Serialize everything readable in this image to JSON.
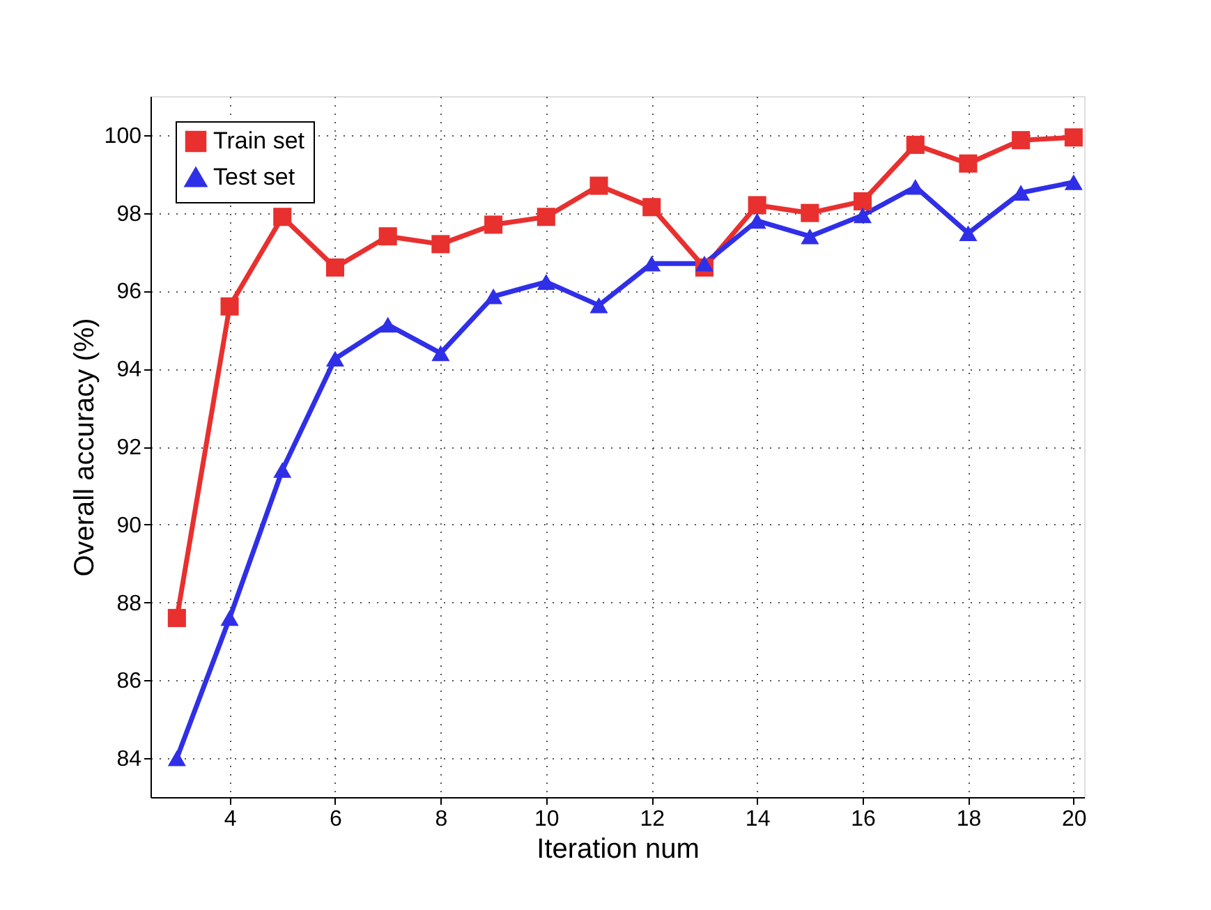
{
  "chart_data": {
    "type": "line",
    "xlabel": "Iteration num",
    "ylabel": "Overall accuracy (%)",
    "x": [
      3,
      4,
      5,
      6,
      7,
      8,
      9,
      10,
      11,
      12,
      13,
      14,
      15,
      16,
      17,
      18,
      19,
      20
    ],
    "xlim": [
      2.5,
      20.2
    ],
    "xticks": [
      4,
      6,
      8,
      10,
      12,
      14,
      16,
      18,
      20
    ],
    "ylim": [
      83,
      101
    ],
    "yticks": [
      84,
      86,
      88,
      90,
      92,
      94,
      96,
      98,
      100
    ],
    "grid": true,
    "legend": "top left",
    "line_style": "solid",
    "series": [
      {
        "name": "Train set",
        "color": "#e8302f",
        "marker": "square",
        "values": [
          87.6,
          95.6,
          97.9,
          96.6,
          97.4,
          97.2,
          97.7,
          97.9,
          98.7,
          98.15,
          96.6,
          98.2,
          98.0,
          98.3,
          99.75,
          99.27,
          99.87,
          99.94
        ]
      },
      {
        "name": "Test set",
        "color": "#2f2fe8",
        "marker": "triangle",
        "values": [
          84.0,
          87.6,
          91.4,
          94.26,
          95.13,
          94.4,
          95.86,
          96.23,
          95.63,
          96.7,
          96.7,
          97.8,
          97.4,
          97.94,
          98.67,
          97.48,
          98.52,
          98.79
        ]
      }
    ]
  }
}
